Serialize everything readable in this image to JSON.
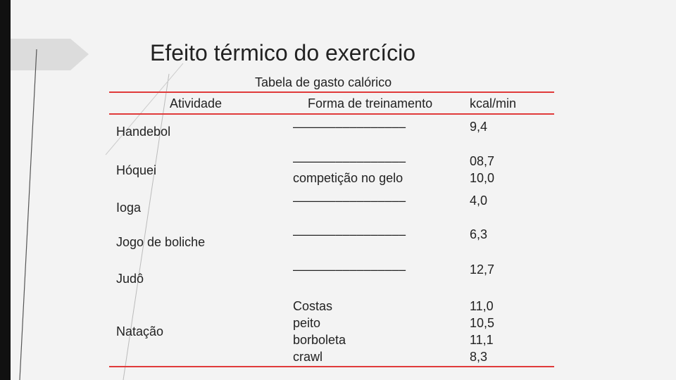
{
  "slide": {
    "title": "Efeito térmico do exercício",
    "table": {
      "caption": "Tabela de gasto calórico",
      "header": [
        "Atividade",
        "Forma de treinamento",
        "kcal/min"
      ],
      "rows": [
        [
          "Handebol",
          [
            "––––––––––––––––"
          ],
          [
            "9,4"
          ]
        ],
        [
          "Hóquei",
          [
            "––––––––––––––––",
            "competição no gelo"
          ],
          [
            "08,7",
            "10,0"
          ]
        ],
        [
          "Ioga",
          [
            "––––––––––––––––"
          ],
          [
            "4,0"
          ]
        ],
        [
          "Jogo de boliche",
          [
            "––––––––––––––––"
          ],
          [
            "6,3"
          ]
        ],
        [
          "Judô",
          [
            "––––––––––––––––"
          ],
          [
            "12,7"
          ]
        ],
        [
          "Natação",
          [
            "Costas",
            "peito",
            "borboleta",
            "crawl"
          ],
          [
            "11,0",
            "10,5",
            "11,1",
            "8,3"
          ]
        ]
      ]
    }
  }
}
